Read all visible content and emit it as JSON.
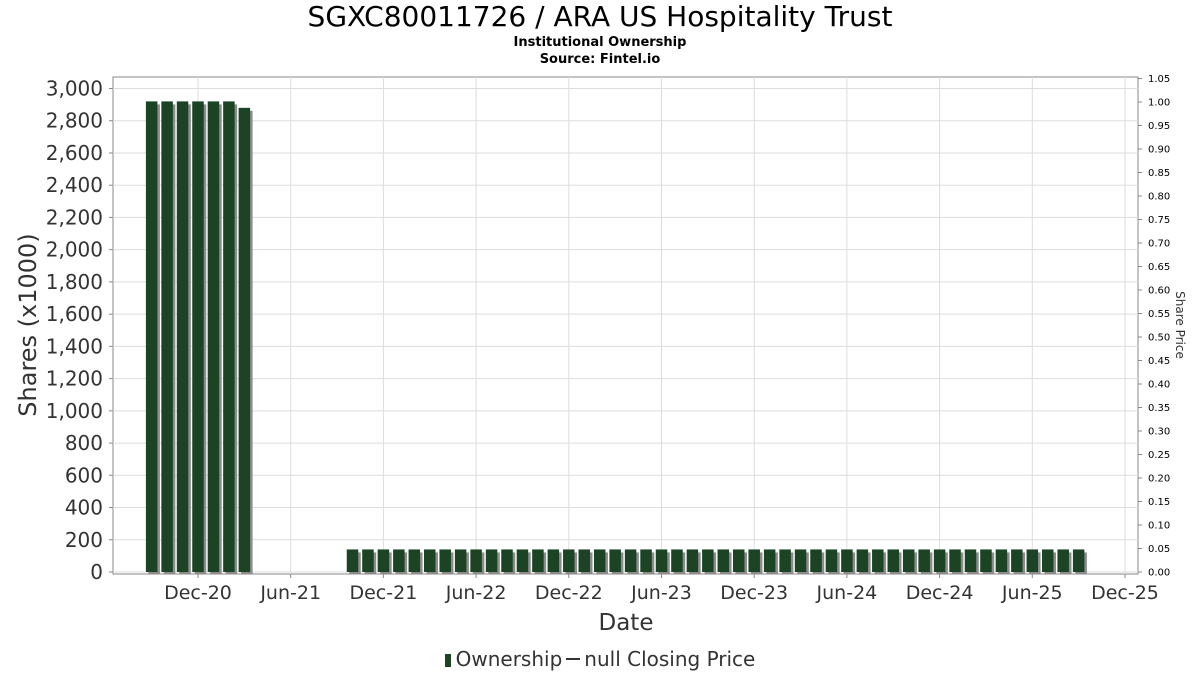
{
  "title": "SGXC80011726 / ARA US Hospitality Trust",
  "subtitle1": "Institutional Ownership",
  "subtitle2": "Source: Fintel.io",
  "legend": {
    "ownership": "Ownership",
    "closing": "null Closing Price"
  },
  "colors": {
    "bar": "#1c4424",
    "bar_shadow": "#8c8c8c",
    "grid": "#dddddd",
    "axis": "#888888"
  },
  "chart_data": {
    "type": "bar",
    "xlabel": "Date",
    "ylabel": "Shares (x1000)",
    "y2label": "Share Price",
    "ylim": [
      0,
      3080
    ],
    "y2lim": [
      0,
      1.05
    ],
    "y_ticks": [
      0,
      200,
      400,
      600,
      800,
      1000,
      1200,
      1400,
      1600,
      1800,
      2000,
      2200,
      2400,
      2600,
      2800,
      3000
    ],
    "y_tick_labels": [
      "0",
      "200",
      "400",
      "600",
      "800",
      "1,000",
      "1,200",
      "1,400",
      "1,600",
      "1,800",
      "2,000",
      "2,200",
      "2,400",
      "2,600",
      "2,800",
      "3,000"
    ],
    "y2_ticks": [
      "0.00",
      "0.05",
      "0.10",
      "0.15",
      "0.20",
      "0.25",
      "0.30",
      "0.35",
      "0.40",
      "0.45",
      "0.50",
      "0.55",
      "0.60",
      "0.65",
      "0.70",
      "0.75",
      "0.80",
      "0.85",
      "0.90",
      "0.95",
      "1.00",
      "1.05"
    ],
    "x_ticks": [
      "Dec-20",
      "Jun-21",
      "Dec-21",
      "Jun-22",
      "Dec-22",
      "Jun-23",
      "Dec-23",
      "Jun-24",
      "Dec-24",
      "Jun-25",
      "Dec-25"
    ],
    "grid": true,
    "legend_position": "bottom",
    "series": [
      {
        "name": "Ownership",
        "segments": [
          {
            "start": "2020-09",
            "values": [
              2920,
              2920,
              2920,
              2920,
              2920,
              2920,
              2880
            ]
          },
          {
            "start": "2021-10",
            "values": [
              140,
              140,
              140,
              140,
              140,
              140,
              140,
              140,
              140,
              140,
              140,
              140,
              140,
              140,
              140,
              140,
              140,
              140,
              140,
              140,
              140,
              140,
              140,
              140,
              140,
              140,
              140,
              140,
              140,
              140,
              140,
              140,
              140,
              140,
              140,
              140,
              140,
              140,
              140,
              140,
              140,
              140,
              140,
              140,
              140,
              140,
              140,
              140
            ]
          }
        ]
      }
    ]
  }
}
